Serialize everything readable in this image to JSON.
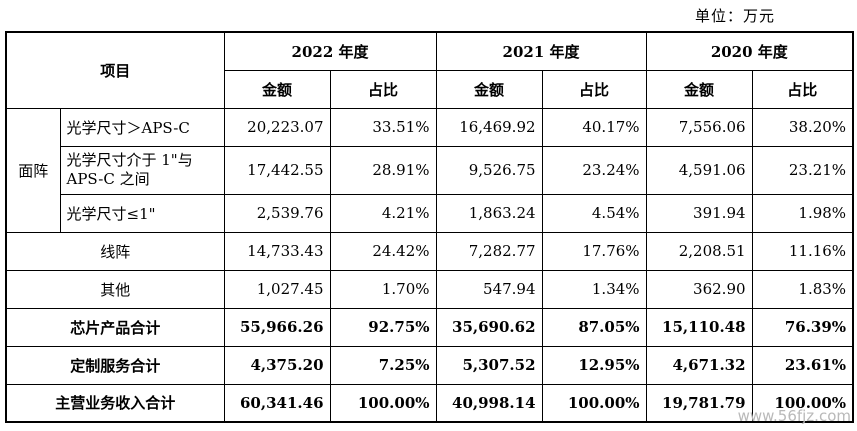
{
  "unit_label": "单位：万元",
  "header": {
    "item": "项目",
    "years": [
      "2022 年度",
      "2021 年度",
      "2020 年度"
    ],
    "amount": "金额",
    "ratio": "占比"
  },
  "group_label": "面阵",
  "rows": [
    {
      "label": "光学尺寸＞APS-C",
      "values": [
        "20,223.07",
        "33.51%",
        "16,469.92",
        "40.17%",
        "7,556.06",
        "38.20%"
      ]
    },
    {
      "label": "光学尺寸介于 1\"与APS-C 之间",
      "values": [
        "17,442.55",
        "28.91%",
        "9,526.75",
        "23.24%",
        "4,591.06",
        "23.21%"
      ]
    },
    {
      "label": "光学尺寸≤1\"",
      "values": [
        "2,539.76",
        "4.21%",
        "1,863.24",
        "4.54%",
        "391.94",
        "1.98%"
      ]
    },
    {
      "label": "线阵",
      "values": [
        "14,733.43",
        "24.42%",
        "7,282.77",
        "17.76%",
        "2,208.51",
        "11.16%"
      ]
    },
    {
      "label": "其他",
      "values": [
        "1,027.45",
        "1.70%",
        "547.94",
        "1.34%",
        "362.90",
        "1.83%"
      ]
    },
    {
      "label": "芯片产品合计",
      "values": [
        "55,966.26",
        "92.75%",
        "35,690.62",
        "87.05%",
        "15,110.48",
        "76.39%"
      ]
    },
    {
      "label": "定制服务合计",
      "values": [
        "4,375.20",
        "7.25%",
        "5,307.52",
        "12.95%",
        "4,671.32",
        "23.61%"
      ]
    },
    {
      "label": "主营业务收入合计",
      "values": [
        "60,341.46",
        "100.00%",
        "40,998.14",
        "100.00%",
        "19,781.79",
        "100.00%"
      ]
    }
  ],
  "watermark": "www.56fjz.com"
}
